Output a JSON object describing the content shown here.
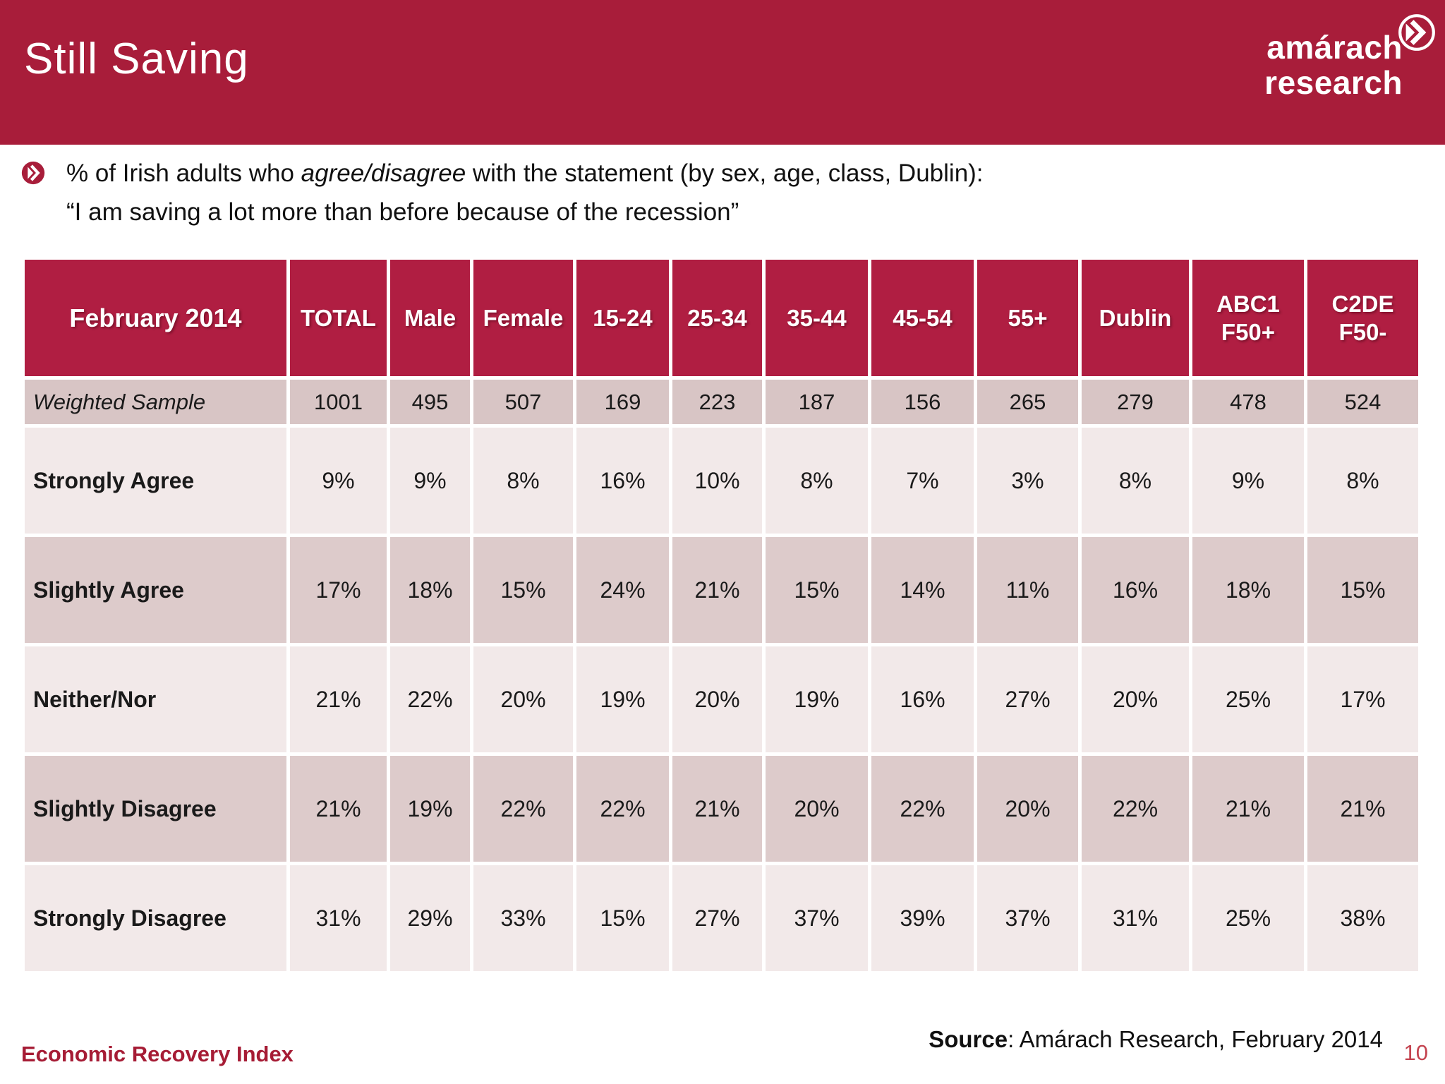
{
  "slide": {
    "title": "Still Saving",
    "logo": {
      "line1": "amárach",
      "line2": "research"
    },
    "intro": {
      "line1_pre": "% of Irish adults who ",
      "line1_italic": "agree/disagree",
      "line1_post": " with the statement (by sex, age, class, Dublin):",
      "line2": "“I am saving a lot more than before because of the recession”"
    },
    "footer_left": "Economic Recovery Index",
    "source_label": "Source",
    "source_rest": ": Amárach Research, February 2014",
    "page_number": "10"
  },
  "colors": {
    "header_band": "#a81d3a",
    "table_header": "#b01e42",
    "row_sample": "#d8c5c5",
    "row_light": "#f2e9e9",
    "row_medium": "#ddcbcb",
    "footer_red": "#a61c35",
    "page_red": "#c4434f"
  },
  "icons": {
    "logo_chevron": "double-chevron-circle-icon",
    "bullet": "chevron-circle-bullet-icon"
  },
  "chart_data": {
    "type": "table",
    "title_cell": "February 2014",
    "columns": [
      "TOTAL",
      "Male",
      "Female",
      "15-24",
      "25-34",
      "35-44",
      "45-54",
      "55+",
      "Dublin",
      "ABC1\nF50+",
      "C2DE\nF50-"
    ],
    "rows": [
      {
        "label": "Weighted Sample",
        "style": "sample",
        "values": [
          "1001",
          "495",
          "507",
          "169",
          "223",
          "187",
          "156",
          "265",
          "279",
          "478",
          "524"
        ]
      },
      {
        "label": "Strongly Agree",
        "style": "light",
        "values": [
          "9%",
          "9%",
          "8%",
          "16%",
          "10%",
          "8%",
          "7%",
          "3%",
          "8%",
          "9%",
          "8%"
        ]
      },
      {
        "label": "Slightly Agree",
        "style": "medium",
        "values": [
          "17%",
          "18%",
          "15%",
          "24%",
          "21%",
          "15%",
          "14%",
          "11%",
          "16%",
          "18%",
          "15%"
        ]
      },
      {
        "label": "Neither/Nor",
        "style": "light",
        "values": [
          "21%",
          "22%",
          "20%",
          "19%",
          "20%",
          "19%",
          "16%",
          "27%",
          "20%",
          "25%",
          "17%"
        ]
      },
      {
        "label": "Slightly Disagree",
        "style": "medium",
        "values": [
          "21%",
          "19%",
          "22%",
          "22%",
          "21%",
          "20%",
          "22%",
          "20%",
          "22%",
          "21%",
          "21%"
        ]
      },
      {
        "label": "Strongly Disagree",
        "style": "light",
        "values": [
          "31%",
          "29%",
          "33%",
          "15%",
          "27%",
          "37%",
          "39%",
          "37%",
          "31%",
          "25%",
          "38%"
        ]
      }
    ]
  }
}
